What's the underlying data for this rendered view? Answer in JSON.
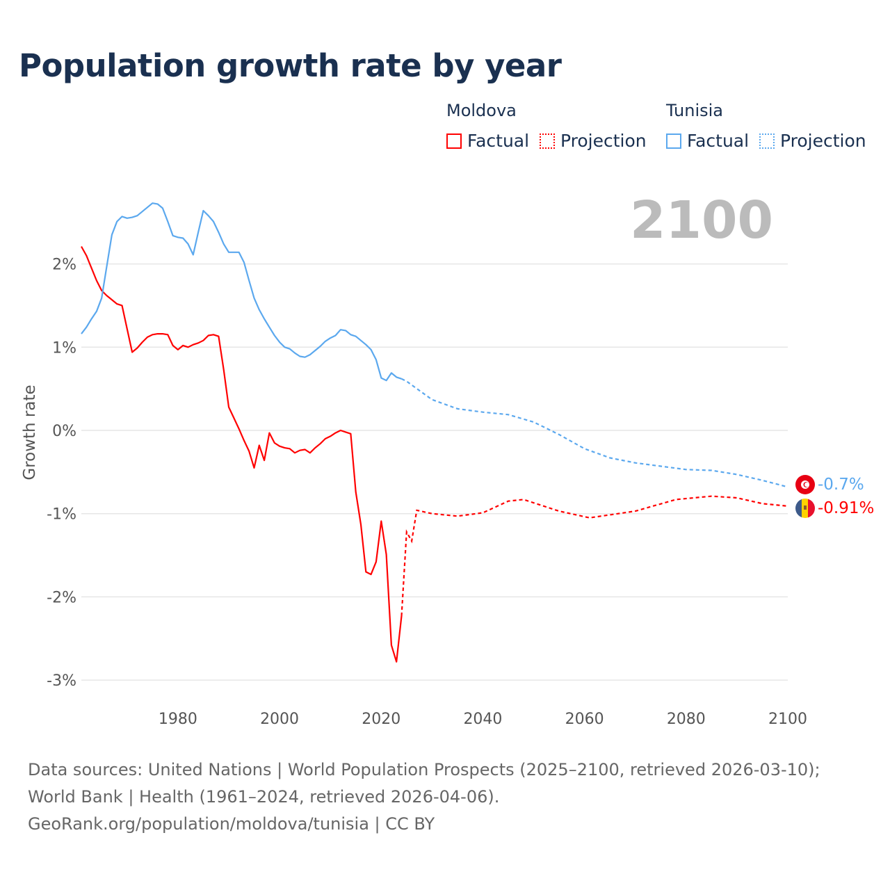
{
  "title": "Population growth rate by year",
  "legend": {
    "groups": [
      {
        "name": "Moldova",
        "color": "#ff0000",
        "items": [
          "Factual",
          "Projection"
        ]
      },
      {
        "name": "Tunisia",
        "color": "#5ba8ee",
        "items": [
          "Factual",
          "Projection"
        ]
      }
    ]
  },
  "footer": {
    "sources": "Data sources: United Nations | World Population Prospects (2025–2100, retrieved 2026-03-10); World Bank | Health (1961–2024, retrieved 2026-04-06).",
    "credit": "GeoRank.org/population/moldova/tunisia | CC BY"
  },
  "chart_data": {
    "type": "line",
    "title": "Population growth rate by year",
    "xlabel": "",
    "ylabel": "Growth rate",
    "xlim": [
      1961,
      2100
    ],
    "ylim": [
      -3.3,
      2.9
    ],
    "x_ticks": [
      1980,
      2000,
      2020,
      2040,
      2060,
      2080,
      2100
    ],
    "y_ticks": [
      2,
      1,
      0,
      -1,
      -2,
      -3
    ],
    "y_tick_labels": [
      "2%",
      "1%",
      "0%",
      "-1%",
      "-2%",
      "-3%"
    ],
    "current_year_label": "2100",
    "grid": true,
    "legend_position": "top-right",
    "series": [
      {
        "name": "Moldova",
        "color": "#ff0000",
        "end_label": "-0.91%",
        "factual": {
          "x": [
            1961,
            1962,
            1963,
            1964,
            1965,
            1966,
            1967,
            1968,
            1969,
            1970,
            1971,
            1972,
            1973,
            1974,
            1975,
            1976,
            1977,
            1978,
            1979,
            1980,
            1981,
            1982,
            1983,
            1984,
            1985,
            1986,
            1987,
            1988,
            1989,
            1990,
            1991,
            1992,
            1993,
            1994,
            1995,
            1996,
            1997,
            1998,
            1999,
            2000,
            2001,
            2002,
            2003,
            2004,
            2005,
            2006,
            2007,
            2008,
            2009,
            2010,
            2011,
            2012,
            2013,
            2014,
            2015,
            2016,
            2017,
            2018,
            2019,
            2020,
            2021,
            2022,
            2023,
            2024
          ],
          "y": [
            2.21,
            2.1,
            1.95,
            1.8,
            1.68,
            1.62,
            1.57,
            1.52,
            1.5,
            1.22,
            0.94,
            0.99,
            1.06,
            1.12,
            1.15,
            1.16,
            1.16,
            1.15,
            1.02,
            0.97,
            1.02,
            1.0,
            1.03,
            1.05,
            1.08,
            1.14,
            1.15,
            1.13,
            0.73,
            0.28,
            0.15,
            0.02,
            -0.12,
            -0.25,
            -0.45,
            -0.18,
            -0.36,
            -0.03,
            -0.15,
            -0.19,
            -0.21,
            -0.22,
            -0.27,
            -0.24,
            -0.23,
            -0.27,
            -0.21,
            -0.16,
            -0.1,
            -0.07,
            -0.03,
            0.0,
            -0.02,
            -0.04,
            -0.74,
            -1.13,
            -1.7,
            -1.73,
            -1.58,
            -1.09,
            -1.49,
            -2.58,
            -2.78,
            -2.23
          ]
        },
        "projection": {
          "x": [
            2024,
            2025,
            2026,
            2027,
            2030,
            2035,
            2040,
            2045,
            2048,
            2055,
            2061,
            2070,
            2078,
            2085,
            2090,
            2095,
            2100
          ],
          "y": [
            -2.23,
            -1.22,
            -1.33,
            -0.96,
            -1.0,
            -1.03,
            -0.99,
            -0.85,
            -0.83,
            -0.97,
            -1.05,
            -0.97,
            -0.83,
            -0.79,
            -0.81,
            -0.88,
            -0.91
          ]
        }
      },
      {
        "name": "Tunisia",
        "color": "#5ba8ee",
        "end_label": "-0.7%",
        "factual": {
          "x": [
            1961,
            1962,
            1963,
            1964,
            1965,
            1966,
            1967,
            1968,
            1969,
            1970,
            1971,
            1972,
            1973,
            1974,
            1975,
            1976,
            1977,
            1978,
            1979,
            1980,
            1981,
            1982,
            1983,
            1984,
            1985,
            1986,
            1987,
            1988,
            1989,
            1990,
            1991,
            1992,
            1993,
            1994,
            1995,
            1996,
            1997,
            1998,
            1999,
            2000,
            2001,
            2002,
            2003,
            2004,
            2005,
            2006,
            2007,
            2008,
            2009,
            2010,
            2011,
            2012,
            2013,
            2014,
            2015,
            2016,
            2017,
            2018,
            2019,
            2020,
            2021,
            2022,
            2023,
            2024
          ],
          "y": [
            1.16,
            1.24,
            1.34,
            1.43,
            1.59,
            1.97,
            2.35,
            2.51,
            2.57,
            2.55,
            2.56,
            2.58,
            2.63,
            2.68,
            2.73,
            2.72,
            2.67,
            2.51,
            2.34,
            2.32,
            2.31,
            2.24,
            2.11,
            2.38,
            2.64,
            2.58,
            2.51,
            2.38,
            2.24,
            2.14,
            2.14,
            2.14,
            2.02,
            1.8,
            1.59,
            1.45,
            1.34,
            1.24,
            1.14,
            1.06,
            1.0,
            0.98,
            0.93,
            0.89,
            0.88,
            0.91,
            0.96,
            1.01,
            1.07,
            1.11,
            1.14,
            1.21,
            1.2,
            1.15,
            1.13,
            1.08,
            1.03,
            0.97,
            0.85,
            0.63,
            0.6,
            0.69,
            0.64,
            0.62
          ]
        },
        "projection": {
          "x": [
            2024,
            2025,
            2030,
            2035,
            2040,
            2045,
            2050,
            2055,
            2060,
            2065,
            2070,
            2075,
            2080,
            2085,
            2090,
            2095,
            2100
          ],
          "y": [
            0.62,
            0.59,
            0.37,
            0.26,
            0.22,
            0.19,
            0.1,
            -0.05,
            -0.22,
            -0.33,
            -0.39,
            -0.43,
            -0.47,
            -0.48,
            -0.53,
            -0.6,
            -0.68
          ]
        }
      }
    ]
  }
}
